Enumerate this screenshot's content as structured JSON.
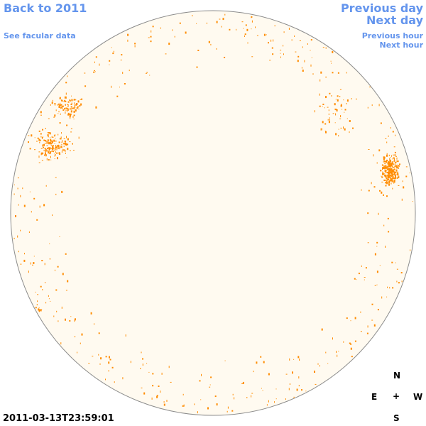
{
  "nav": {
    "back_label": "Back to 2011",
    "facular_label": "See facular data",
    "prev_day_label": "Previous day",
    "next_day_label": "Next day",
    "prev_hour_label": "Previous hour",
    "next_hour_label": "Next hour"
  },
  "compass": {
    "north": "N",
    "east": "E",
    "center": "+",
    "west": "W",
    "south": "S"
  },
  "timestamp": "2011-03-13T23:59:01",
  "colors": {
    "disk_fill": "#fffaf0",
    "disk_stroke": "#8c8c8c",
    "magnetic_feature": "#ff8c00",
    "link": "#6495ed"
  }
}
